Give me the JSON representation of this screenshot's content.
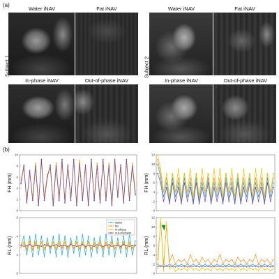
{
  "panel_a": {
    "letter": "(a)",
    "subjects": [
      {
        "label": "Subject 1",
        "titles": [
          "Water iNAV",
          "Fat iNAV",
          "In-phase iNAV",
          "Out-of-phase iNAV"
        ]
      },
      {
        "label": "Subject 2",
        "titles": [
          "Water iNAV",
          "Fat iNAV",
          "In-phase iNAV",
          "Out-of-phase iNAV"
        ]
      }
    ]
  },
  "panel_b": {
    "letter": "(b)"
  },
  "chart_data": [
    {
      "type": "line",
      "id": "s1-fh",
      "ylabel": "FH (mm)",
      "ylim": [
        0,
        10
      ],
      "yticks": [
        "0",
        "2",
        "4",
        "6",
        "8",
        "10"
      ],
      "legend": null,
      "series": [
        {
          "name": "water",
          "color": "#1fa8c8",
          "values": [
            5,
            8,
            1.5,
            7,
            2,
            8,
            1,
            9,
            2,
            6,
            8,
            1,
            8,
            2,
            9,
            1.5,
            8,
            2,
            9,
            1,
            8.5,
            2,
            8,
            1,
            9,
            2,
            8,
            1.5,
            9,
            2,
            8,
            1,
            9,
            2.5,
            8,
            1.5,
            9,
            2,
            8,
            3
          ]
        },
        {
          "name": "fat",
          "color": "#ff8c1a",
          "values": [
            5.5,
            7.5,
            2,
            6.5,
            2.5,
            8.5,
            1.5,
            8.5,
            2.5,
            6.5,
            7.5,
            1.5,
            8.5,
            2.5,
            8.5,
            2,
            7.5,
            2.5,
            8.5,
            1.5,
            9,
            2.5,
            7.5,
            1.5,
            8.5,
            2.5,
            8.5,
            2,
            8.5,
            2.5,
            8.5,
            1.5,
            8.5,
            3,
            7.5,
            2,
            8.5,
            2.5,
            8.5,
            3.5
          ]
        },
        {
          "name": "in-phase",
          "color": "#e6c400",
          "values": [
            5,
            7.8,
            1.8,
            6.8,
            2.2,
            8.2,
            1.2,
            8.8,
            2.2,
            6.2,
            7.8,
            1.2,
            8.2,
            2.2,
            8.8,
            1.8,
            7.8,
            2.2,
            8.8,
            1.2,
            8.8,
            2.2,
            7.8,
            1.2,
            8.8,
            2.2,
            8.2,
            1.8,
            8.8,
            2.2,
            8.2,
            1.2,
            8.8,
            2.8,
            7.8,
            1.8,
            8.8,
            2.2,
            8.2,
            3.2
          ]
        },
        {
          "name": "out-of-phase",
          "color": "#7b3fa8",
          "values": [
            4.8,
            8.2,
            1.4,
            7.2,
            1.8,
            8,
            0.9,
            9.2,
            1.8,
            6,
            8.2,
            0.9,
            8,
            1.8,
            9.2,
            1.4,
            8.2,
            1.8,
            9.2,
            0.9,
            8.4,
            1.8,
            8.2,
            0.9,
            9.2,
            1.8,
            8,
            1.4,
            9.2,
            1.8,
            8,
            0.9,
            9.2,
            2.4,
            8.2,
            1.4,
            9.2,
            1.8,
            8,
            2.8
          ]
        }
      ]
    },
    {
      "type": "line",
      "id": "s2-fh",
      "ylabel": "FH (mm)",
      "ylim": [
        0,
        12
      ],
      "yticks": [
        "0",
        "2",
        "4",
        "6",
        "8",
        "10",
        "12"
      ],
      "legend": null,
      "series": [
        {
          "name": "water",
          "color": "#1fa8c8",
          "values": [
            10,
            7,
            3,
            6,
            2,
            7,
            3,
            6,
            2,
            7,
            3,
            6,
            2,
            7,
            2,
            6,
            3,
            7,
            2,
            6,
            3,
            6,
            2,
            7,
            3,
            6,
            2,
            7,
            2,
            6,
            3,
            7,
            2,
            6,
            3,
            6,
            2,
            7,
            3,
            6
          ]
        },
        {
          "name": "fat",
          "color": "#ff8c1a",
          "values": [
            11,
            8,
            4,
            7,
            3,
            8,
            4,
            7,
            3,
            8,
            4,
            7,
            3,
            8,
            3,
            7,
            4,
            8,
            3,
            7,
            4,
            7,
            3,
            8,
            4,
            7,
            3,
            8,
            3,
            7,
            4,
            8,
            3,
            7,
            4,
            7,
            3,
            8,
            4,
            7
          ]
        },
        {
          "name": "in-phase",
          "color": "#e6c400",
          "values": [
            12,
            9,
            4,
            8,
            3,
            8,
            4,
            9,
            3,
            8,
            4,
            9,
            3,
            8,
            3,
            9,
            4,
            8,
            3,
            9,
            4,
            9,
            3,
            8,
            4,
            9,
            3,
            8,
            3,
            9,
            4,
            8,
            3,
            9,
            4,
            9,
            3,
            8,
            4,
            8
          ]
        },
        {
          "name": "out-of-phase",
          "color": "#7b3fa8",
          "values": [
            8,
            6,
            2,
            5,
            1.5,
            6,
            2,
            5,
            1.5,
            6,
            2,
            5,
            1.5,
            6,
            1.5,
            5,
            2,
            6,
            1.5,
            5,
            2,
            5,
            1.5,
            6,
            2,
            5,
            1.5,
            6,
            1.5,
            5,
            2,
            6,
            1.5,
            5,
            2,
            5,
            1.5,
            6,
            2,
            5
          ]
        }
      ]
    },
    {
      "type": "line",
      "id": "s1-rl",
      "ylabel": "RL (mm)",
      "ylim": [
        0,
        6
      ],
      "yticks": [
        "0",
        "2",
        "4",
        "6"
      ],
      "legend": "top-right",
      "series": [
        {
          "name": "water",
          "color": "#1fa8c8",
          "values": [
            3,
            4,
            2,
            4,
            1.8,
            4.2,
            2,
            4,
            1.8,
            3.8,
            2.2,
            4,
            1.8,
            4.2,
            2,
            4,
            1.8,
            3.8,
            2.2,
            4,
            1.8,
            4.2,
            2,
            4,
            1.8,
            3.8,
            2.2,
            4,
            1.8,
            4.2,
            2,
            4,
            1.8,
            3.8,
            2.2,
            4,
            1.8,
            4.2,
            2,
            3.5
          ]
        },
        {
          "name": "fat",
          "color": "#ff8c1a",
          "values": [
            2.8,
            3.2,
            2.6,
            3.4,
            2.5,
            3.2,
            2.7,
            3.3,
            2.6,
            3.2,
            2.7,
            3.3,
            2.6,
            3.2,
            2.7,
            3.3,
            2.6,
            3.2,
            2.7,
            3.3,
            2.6,
            3.2,
            2.7,
            3.3,
            2.6,
            3.2,
            2.7,
            3.3,
            2.6,
            3.2,
            2.7,
            3.3,
            2.6,
            3.2,
            2.7,
            3.3,
            2.6,
            3.2,
            2.7,
            3
          ]
        },
        {
          "name": "in-phase",
          "color": "#e6c400",
          "values": [
            3,
            3.4,
            2.7,
            3.5,
            2.6,
            3.4,
            2.8,
            3.4,
            2.7,
            3.3,
            2.8,
            3.4,
            2.7,
            3.4,
            2.8,
            3.4,
            2.7,
            3.3,
            2.8,
            3.4,
            2.7,
            3.4,
            2.8,
            3.4,
            2.7,
            3.3,
            2.8,
            3.4,
            2.7,
            3.4,
            2.8,
            3.4,
            2.7,
            3.3,
            2.8,
            3.4,
            2.7,
            3.4,
            2.8,
            3.1
          ]
        },
        {
          "name": "out-of-phase",
          "color": "#7b3fa8",
          "values": [
            3,
            2.9,
            3,
            3.1,
            2.9,
            3,
            3,
            2.9,
            3.1,
            3,
            2.9,
            3,
            3.1,
            2.9,
            3,
            3,
            2.9,
            3.1,
            3,
            2.9,
            3,
            3.1,
            2.9,
            3,
            3,
            2.9,
            3.1,
            3,
            2.9,
            3,
            3.1,
            2.9,
            3,
            3,
            2.9,
            3.1,
            3,
            2.9,
            3,
            3
          ]
        }
      ]
    },
    {
      "type": "line",
      "id": "s2-rl",
      "ylabel": "RL (mm)",
      "ylim": [
        0,
        12
      ],
      "yticks": [
        "0",
        "2",
        "4",
        "6",
        "8",
        "10",
        "12"
      ],
      "legend": null,
      "series": [
        {
          "name": "water",
          "color": "#1fa8c8",
          "values": [
            2,
            1.5,
            2,
            1.5,
            2,
            1.5,
            2,
            1.5,
            2,
            1.5,
            2,
            1.5,
            2,
            1.5,
            2,
            1.5,
            2,
            1.5,
            2,
            1.5,
            2,
            1.5,
            2,
            1.5,
            2,
            1.5,
            2,
            1.5,
            2,
            1.5,
            2,
            1.5,
            2,
            1.5,
            2,
            1.5,
            2,
            1.5,
            2,
            1.5
          ]
        },
        {
          "name": "fat",
          "color": "#ff8c1a",
          "values": [
            3,
            11,
            2,
            10,
            2.5,
            4,
            2,
            3,
            2.5,
            3,
            2,
            4,
            2.5,
            3,
            2,
            3.5,
            2.5,
            3,
            2,
            3,
            2.5,
            4,
            2,
            3,
            2.5,
            3,
            2,
            3.5,
            2.5,
            3,
            2,
            3,
            2.5,
            4,
            2,
            3,
            2.5,
            3,
            2,
            3
          ]
        },
        {
          "name": "in-phase",
          "color": "#e6c400",
          "values": [
            1,
            12,
            0.5,
            11,
            1,
            1.5,
            0.5,
            1,
            0.8,
            1.2,
            0.6,
            1.5,
            0.8,
            1,
            0.6,
            1.2,
            0.8,
            1,
            0.6,
            1.5,
            0.8,
            1,
            0.6,
            1.2,
            0.8,
            1,
            0.6,
            1.5,
            0.8,
            1,
            0.6,
            1.2,
            0.8,
            1,
            0.6,
            1.5,
            0.8,
            1,
            0.6,
            1
          ]
        },
        {
          "name": "out-of-phase",
          "color": "#7b3fa8",
          "values": [
            1.5,
            1.6,
            1.4,
            1.6,
            1.5,
            1.6,
            1.4,
            1.6,
            1.5,
            1.6,
            1.4,
            1.6,
            1.5,
            1.6,
            1.4,
            1.6,
            1.5,
            1.6,
            1.4,
            1.6,
            1.5,
            1.6,
            1.4,
            1.6,
            1.5,
            1.6,
            1.4,
            1.6,
            1.5,
            1.6,
            1.4,
            1.6,
            1.5,
            1.6,
            1.4,
            1.6,
            1.5,
            1.6,
            1.4,
            1.6
          ]
        }
      ],
      "annotation": {
        "type": "arrowhead",
        "color": "#1a8a2a",
        "x": 2,
        "y": 9.8
      }
    }
  ]
}
